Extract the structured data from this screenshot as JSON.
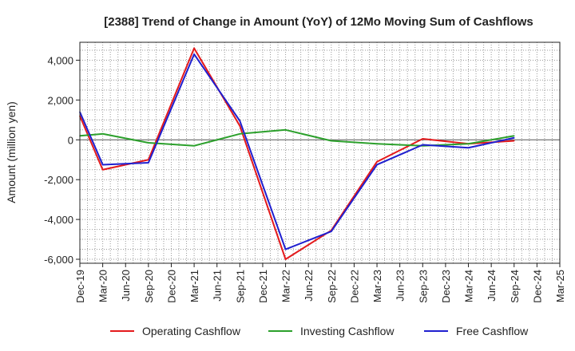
{
  "chart_data": {
    "type": "line",
    "title": "[2388]  Trend of Change in Amount (YoY) of 12Mo Moving Sum of Cashflows",
    "xlabel": "",
    "ylabel": "Amount (million yen)",
    "ylim": [
      -6200,
      4900
    ],
    "yticks": [
      4000,
      2000,
      0,
      -2000,
      -4000,
      -6000
    ],
    "ytick_labels": [
      "4,000",
      "2,000",
      "0",
      "-2,000",
      "-4,000",
      "-6,000"
    ],
    "grid": true,
    "legend_position": "bottom",
    "categories": [
      "Dec-19",
      "Mar-20",
      "Jun-20",
      "Sep-20",
      "Dec-20",
      "Mar-21",
      "Jun-21",
      "Sep-21",
      "Dec-21",
      "Mar-22",
      "Jun-22",
      "Sep-22",
      "Dec-22",
      "Mar-23",
      "Jun-23",
      "Sep-23",
      "Dec-23",
      "Mar-24",
      "Jun-24",
      "Sep-24",
      "Dec-24",
      "Mar-25"
    ],
    "series": [
      {
        "name": "Operating Cashflow",
        "color": "#e41a1c",
        "values": [
          1200,
          -1500,
          null,
          -1000,
          null,
          4600,
          null,
          700,
          null,
          -6000,
          null,
          -4550,
          null,
          -1100,
          null,
          50,
          null,
          -200,
          null,
          -50,
          null,
          null
        ]
      },
      {
        "name": "Investing Cashflow",
        "color": "#2ca02c",
        "values": [
          200,
          300,
          null,
          -150,
          null,
          -300,
          null,
          300,
          null,
          500,
          null,
          -50,
          null,
          -200,
          null,
          -300,
          null,
          -200,
          null,
          200,
          null,
          null
        ]
      },
      {
        "name": "Free Cashflow",
        "color": "#1f1fcf",
        "values": [
          1400,
          -1250,
          null,
          -1150,
          null,
          4300,
          null,
          950,
          null,
          -5500,
          null,
          -4600,
          null,
          -1250,
          null,
          -250,
          null,
          -400,
          null,
          100,
          null,
          null
        ]
      }
    ]
  }
}
